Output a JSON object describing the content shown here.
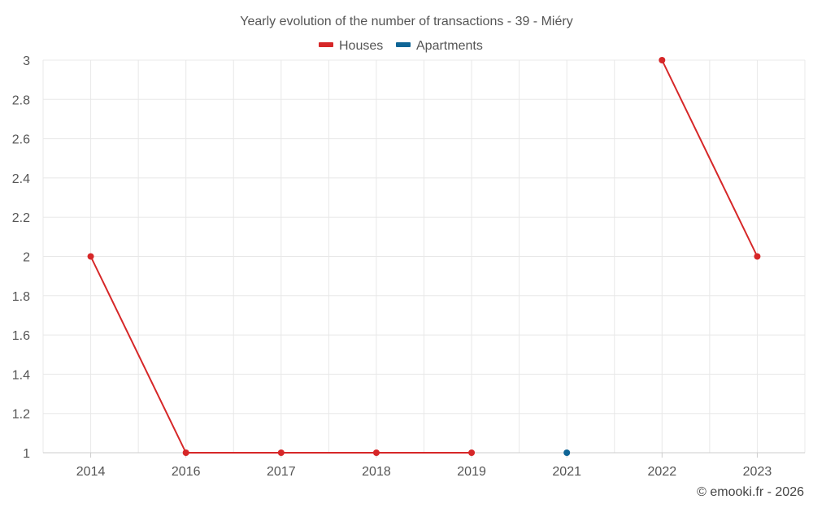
{
  "chart_data": {
    "type": "line",
    "title": "Yearly evolution of the number of transactions - 39 - Miéry",
    "categories": [
      "2014",
      "2016",
      "2017",
      "2018",
      "2019",
      "2021",
      "2022",
      "2023"
    ],
    "ylim": [
      1,
      3
    ],
    "yticks": [
      "1",
      "1.2",
      "1.4",
      "1.6",
      "1.8",
      "2",
      "2.2",
      "2.4",
      "2.6",
      "2.8",
      "3"
    ],
    "grid": true,
    "legend_position": "top",
    "series": [
      {
        "name": "Houses",
        "color": "#d62728",
        "values": [
          2,
          1,
          1,
          1,
          1,
          null,
          3,
          2
        ]
      },
      {
        "name": "Apartments",
        "color": "#0f6596",
        "values": [
          null,
          null,
          null,
          null,
          null,
          1,
          null,
          null
        ]
      }
    ],
    "credit": "© emooki.fr - 2026"
  }
}
